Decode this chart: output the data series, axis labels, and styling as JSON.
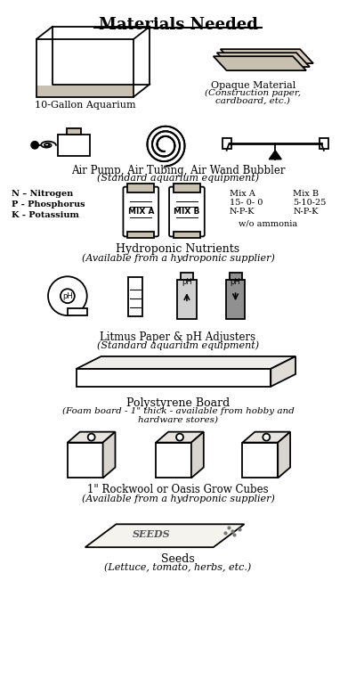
{
  "title": "Materials Needed",
  "bg_color": "#ffffff",
  "npk_lines": [
    "N – Nitrogen",
    "P - Phosphorus",
    "K - Potassium"
  ],
  "mix_a_label": "Mix A",
  "mix_a_vals": "15- 0- 0",
  "mix_a_npk": "N-P-K",
  "mix_b_label": "Mix B",
  "mix_b_vals": "5-10-25",
  "mix_b_npk": "N-P-K",
  "wo_ammonia": "w/o ammonia",
  "label_aquarium": "10-Gallon Aquarium",
  "label_opaque": "Opaque Material",
  "label_opaque_sub": "(Construction paper,\ncardboard, etc.)",
  "label_air": "Air Pump, Air Tubing, Air Wand Bubbler",
  "label_air_sub": "(Standard aquarium equipment)",
  "label_nutrients": "Hydroponic Nutrients",
  "label_nutrients_sub": "(Available from a hydroponic supplier)",
  "label_litmus": "Litmus Paper & pH Adjusters",
  "label_litmus_sub": "(Standard aquarium equipment)",
  "label_board": "Polystyrene Board",
  "label_board_sub1": "(Foam board - 1\" thick - available from hobby and",
  "label_board_sub2": "hardware stores)",
  "label_cubes": "1\" Rockwool or Oasis Grow Cubes",
  "label_cubes_sub": "(Available from a hydroponic supplier)",
  "label_seeds": "Seeds",
  "label_seeds_sub": "(Lettuce, tomato, herbs, etc.)",
  "fc_gray": "#c8c0b0",
  "fc_white": "#ffffff"
}
